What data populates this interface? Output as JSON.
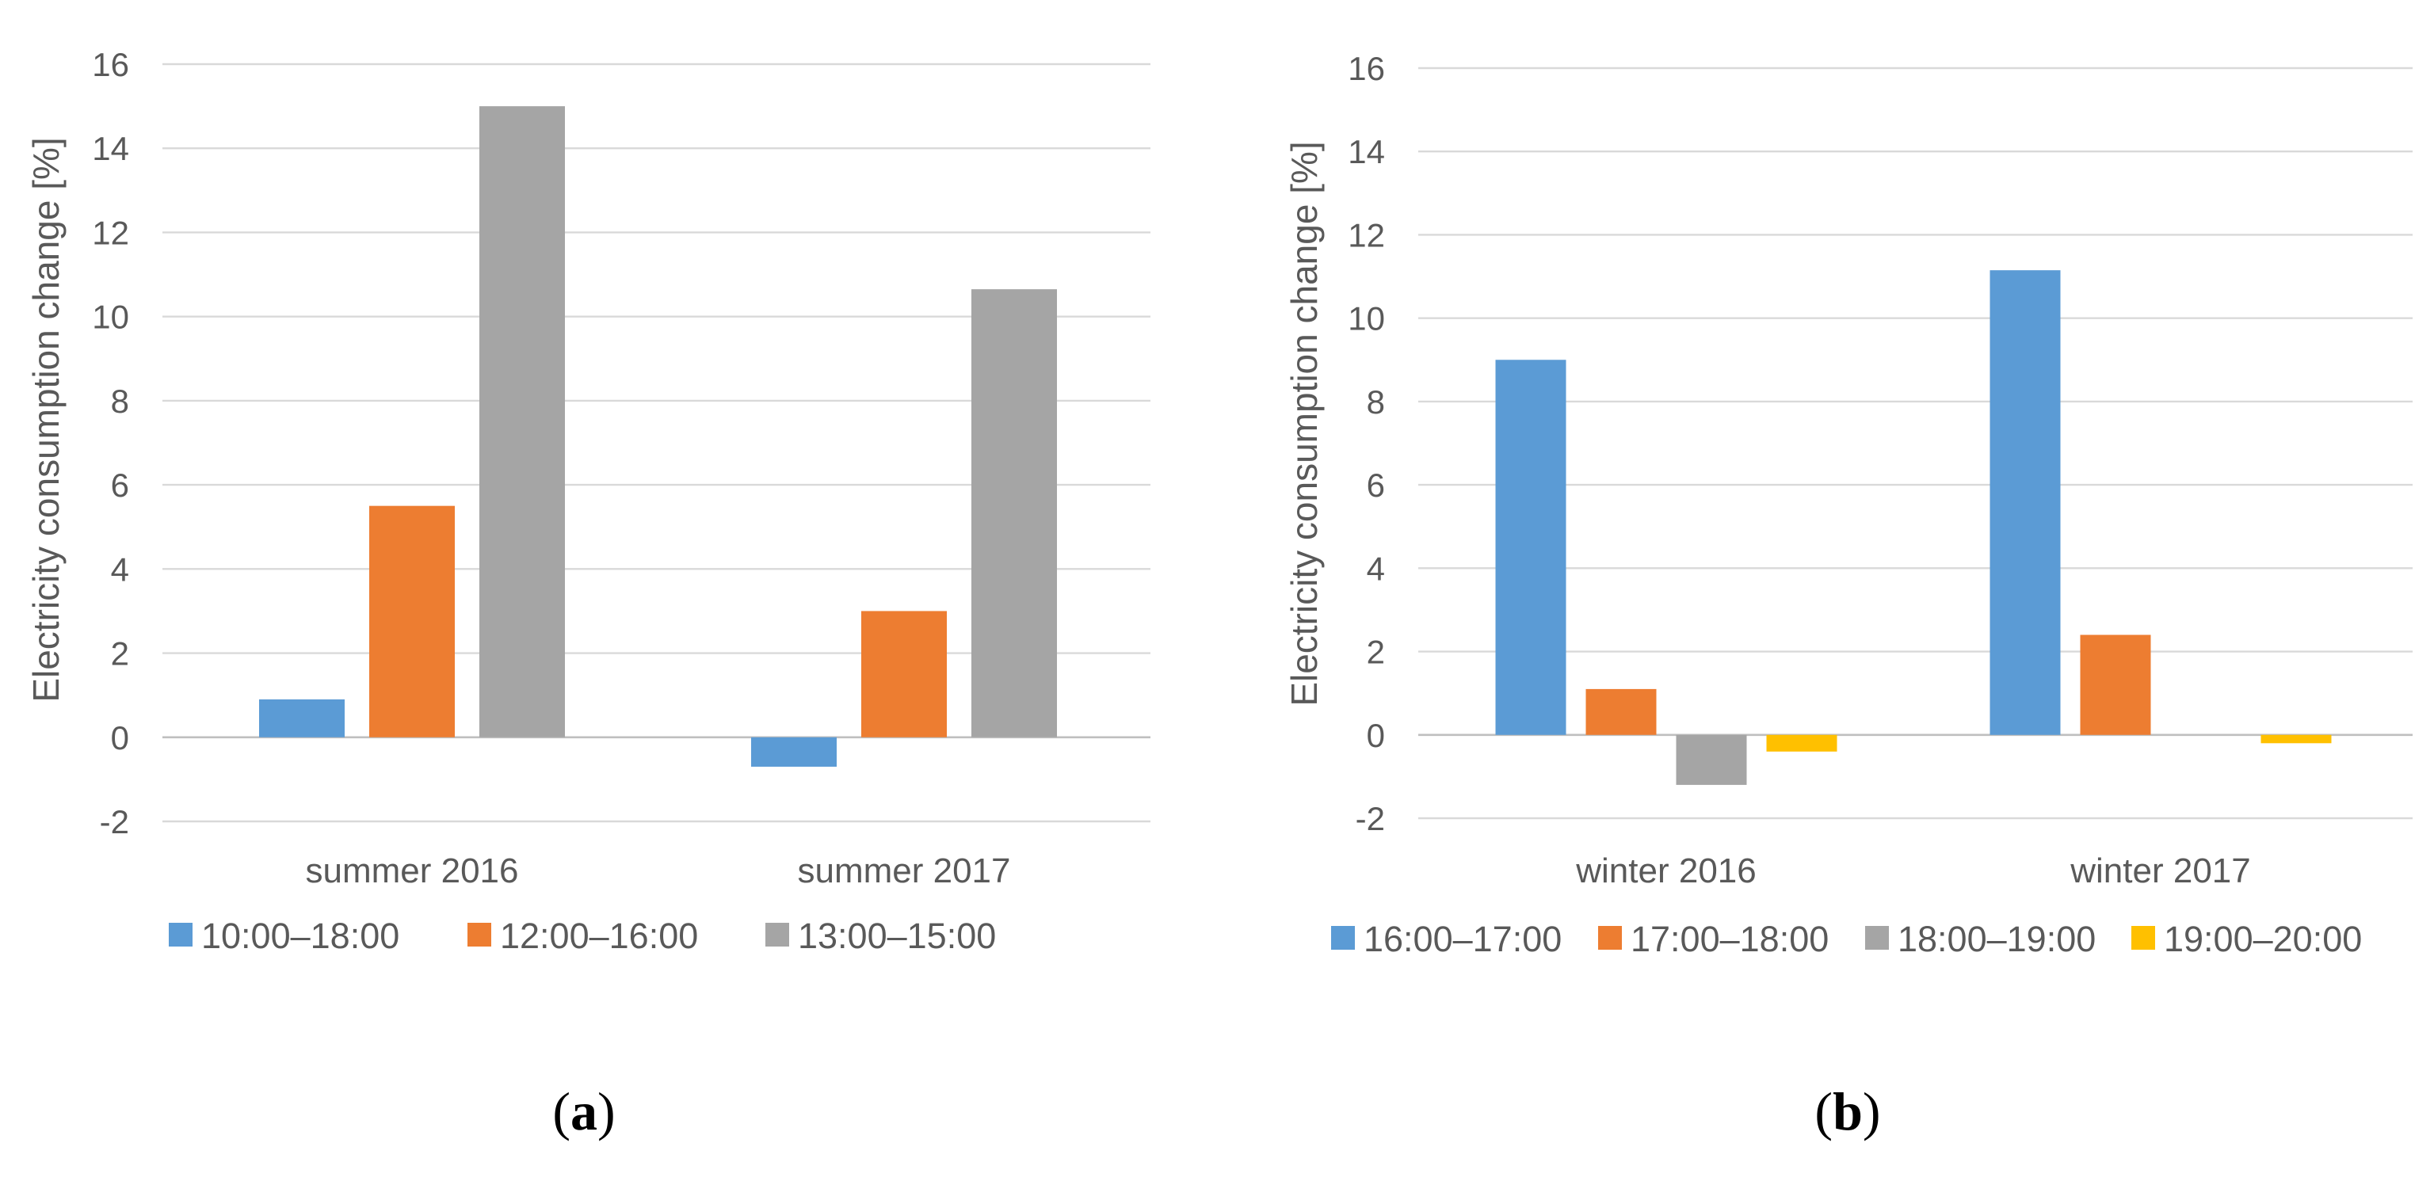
{
  "chart_data": [
    {
      "id": "a",
      "type": "bar",
      "panel_label": "a",
      "ylabel": "Electricity consumption change [%]",
      "ylim": [
        -2,
        16
      ],
      "yticks": [
        -2,
        0,
        2,
        4,
        6,
        8,
        10,
        12,
        14,
        16
      ],
      "grid": true,
      "legend_position": "bottom",
      "categories": [
        "summer 2016",
        "summer 2017"
      ],
      "series": [
        {
          "name": "10:00–18:00",
          "color": "#5b9bd5",
          "values": [
            0.9,
            -0.7
          ]
        },
        {
          "name": "12:00–16:00",
          "color": "#ed7d31",
          "values": [
            5.5,
            3.0
          ]
        },
        {
          "name": "13:00–15:00",
          "color": "#a5a5a5",
          "values": [
            15.0,
            10.65
          ]
        }
      ]
    },
    {
      "id": "b",
      "type": "bar",
      "panel_label": "b",
      "ylabel": "Electricity consumption change [%]",
      "ylim": [
        -2,
        16
      ],
      "yticks": [
        -2,
        0,
        2,
        4,
        6,
        8,
        10,
        12,
        14,
        16
      ],
      "grid": true,
      "legend_position": "bottom",
      "categories": [
        "winter 2016",
        "winter 2017"
      ],
      "series": [
        {
          "name": "16:00–17:00",
          "color": "#5b9bd5",
          "values": [
            9.0,
            11.15
          ]
        },
        {
          "name": "17:00–18:00",
          "color": "#ed7d31",
          "values": [
            1.1,
            2.4
          ]
        },
        {
          "name": "18:00–19:00",
          "color": "#a5a5a5",
          "values": [
            -1.2,
            0.0
          ]
        },
        {
          "name": "19:00–20:00",
          "color": "#ffc000",
          "values": [
            -0.4,
            -0.2
          ]
        }
      ]
    }
  ]
}
